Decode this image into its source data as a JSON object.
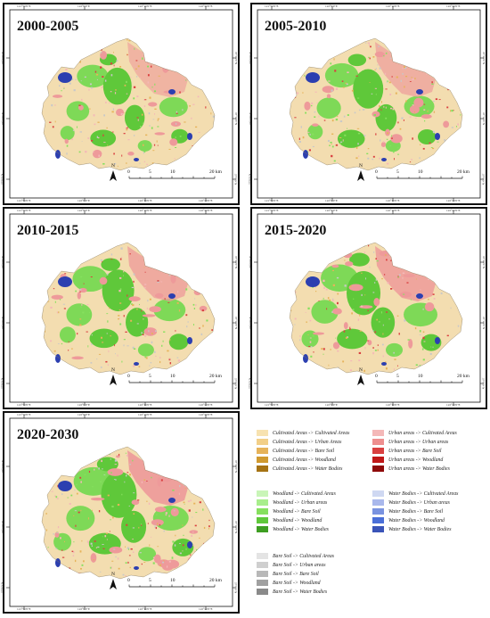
{
  "panels": [
    {
      "title": "2000-2005"
    },
    {
      "title": "2005-2010"
    },
    {
      "title": "2010-2015"
    },
    {
      "title": "2015-2020"
    },
    {
      "title": "2020-2030"
    }
  ],
  "ticks": {
    "top": [
      "121°50'0\"E",
      "122°0'0\"E",
      "122°10'0\"E",
      "122°20'0\"E"
    ],
    "bottom": [
      "121°50'0\"E",
      "122°0'0\"E",
      "122°10'0\"E",
      "122°20'0\"E"
    ],
    "left": [
      "37°20'0\"N",
      "37°10'0\"N",
      "37°0'0\"N"
    ],
    "right": [
      "37°20'0\"N",
      "37°10'0\"N",
      "37°0'0\"N"
    ]
  },
  "scalebar": {
    "labels": [
      "0",
      "5",
      "10",
      "20 km"
    ],
    "north": "N"
  },
  "colors": {
    "cultivated": "#f5deb3",
    "urban": "#f0a0a0",
    "woodland": "#7ed957",
    "water": "#2c3fb0",
    "bare": "#c8c8c8"
  },
  "legend": {
    "groups": [
      {
        "items": [
          {
            "label": "Cultivated Areas -> Cultivated Areas",
            "color": "#f7e2b0"
          },
          {
            "label": "Cultivated Areas -> Urban Areas",
            "color": "#f2cf88"
          },
          {
            "label": "Cultivated Areas -> Bare Soil",
            "color": "#e6b35a"
          },
          {
            "label": "Cultivated Areas -> Woodland",
            "color": "#d09a30"
          },
          {
            "label": "Cultivated Areas -> Water Bodies",
            "color": "#a67314"
          }
        ]
      },
      {
        "items": [
          {
            "label": "Urban areas -> Cultivated Areas",
            "color": "#f4b8b8"
          },
          {
            "label": "Urban areas -> Urban areas",
            "color": "#ee8f8f"
          },
          {
            "label": "Urban areas -> Bare Soil",
            "color": "#d94040"
          },
          {
            "label": "Urban areas -> Woodland",
            "color": "#c01818"
          },
          {
            "label": "Urban areas -> Water Bodies",
            "color": "#8e0a0a"
          }
        ]
      },
      {
        "items": [
          {
            "label": "Woodland -> Cultivated Areas",
            "color": "#c9f5b8"
          },
          {
            "label": "Woodland -> Urban areas",
            "color": "#a8ee8c"
          },
          {
            "label": "Woodland -> Bare Soil",
            "color": "#86e05e"
          },
          {
            "label": "Woodland -> Woodland",
            "color": "#5fc83a"
          },
          {
            "label": "Woodland -> Water Bodies",
            "color": "#3e9e22"
          }
        ]
      },
      {
        "items": [
          {
            "label": "Water Bodies -> Cultivated Areas",
            "color": "#cfd8f2"
          },
          {
            "label": "Water Bodies -> Urban areas",
            "color": "#a9b8ec"
          },
          {
            "label": "Water Bodies -> Bare Soil",
            "color": "#7a93e0"
          },
          {
            "label": "Water Bodies -> Woodland",
            "color": "#4a6fd8"
          },
          {
            "label": "Water Bodies -> Water Bodies",
            "color": "#3a54b8"
          }
        ]
      },
      {
        "items": [
          {
            "label": "Bare Soil -> Cultivated Areas",
            "color": "#e4e4e4"
          },
          {
            "label": "Bare Soil -> Urban areas",
            "color": "#cfcfcf"
          },
          {
            "label": "Bare Soil -> Bare Soil",
            "color": "#b8b8b8"
          },
          {
            "label": "Bare Soil -> Woodland",
            "color": "#a0a0a0"
          },
          {
            "label": "Bare Soil -> Water Bodies",
            "color": "#8a8a8a"
          }
        ]
      }
    ]
  }
}
